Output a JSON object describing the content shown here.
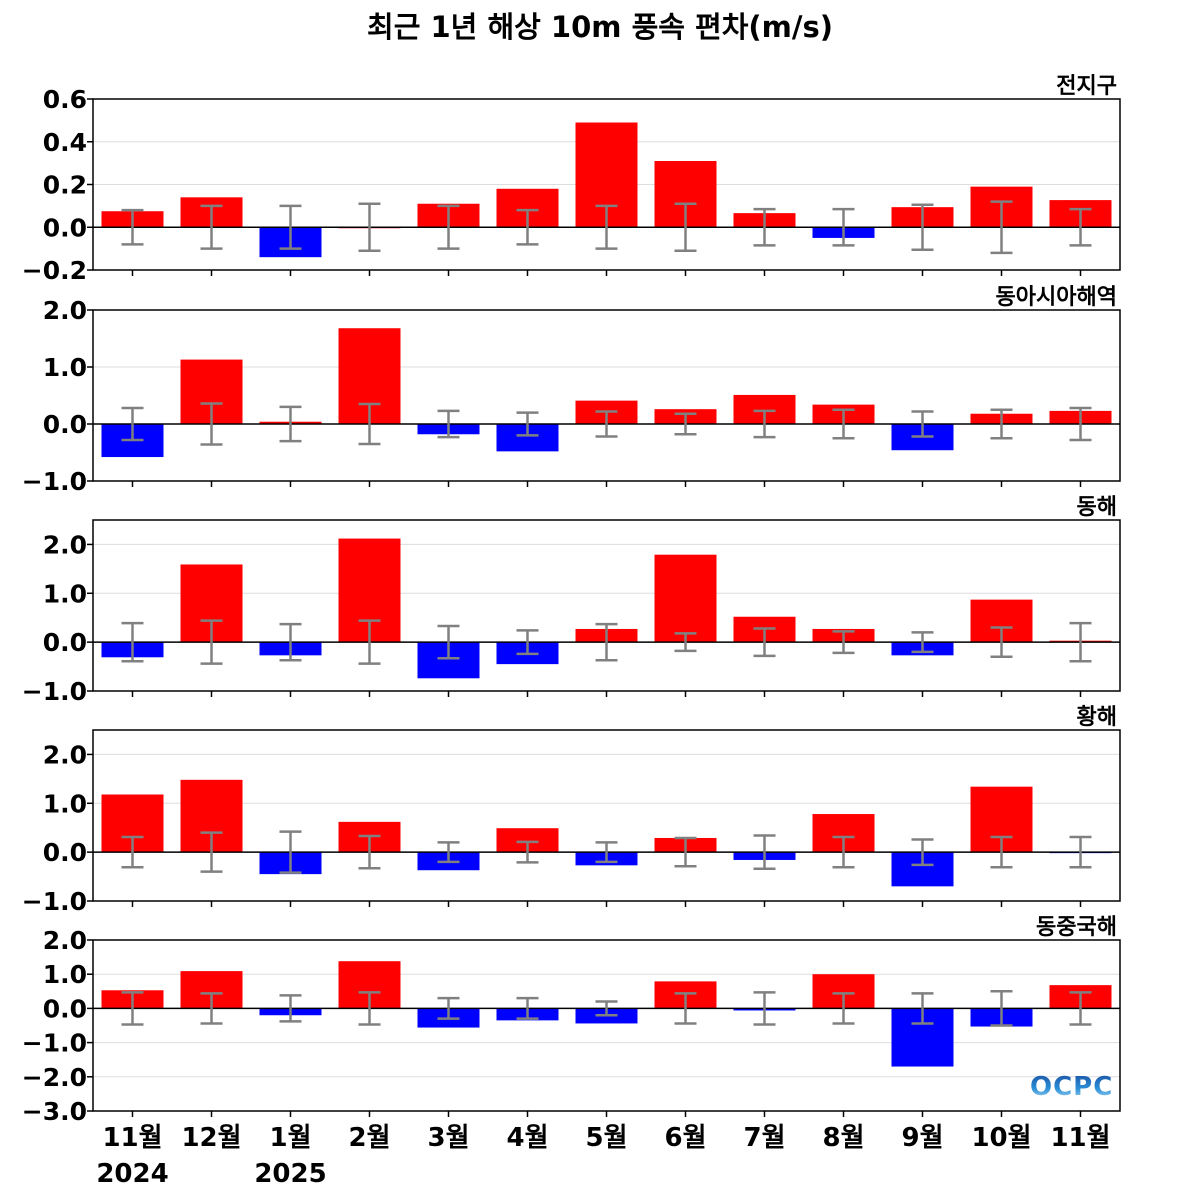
{
  "chart_data": [
    {
      "type": "bar",
      "panel_label": "전지구",
      "ylim": [
        -0.2,
        0.6
      ],
      "ticks": [
        0.6,
        0.4,
        0.2,
        0.0,
        -0.2
      ],
      "tick_labels": [
        "0.6",
        "0.4",
        "0.2",
        "0.0",
        "−0.2"
      ],
      "values": [
        0.075,
        0.14,
        -0.14,
        0.0,
        0.11,
        0.18,
        0.49,
        0.31,
        0.066,
        -0.05,
        0.094,
        0.19,
        0.127
      ],
      "error": [
        0.08,
        0.1,
        0.1,
        0.11,
        0.1,
        0.08,
        0.1,
        0.11,
        0.085,
        0.085,
        0.105,
        0.12,
        0.085
      ]
    },
    {
      "type": "bar",
      "panel_label": "동아시아해역",
      "ylim": [
        -1.0,
        2.0
      ],
      "ticks": [
        2.0,
        1.0,
        0.0,
        -1.0
      ],
      "tick_labels": [
        "2.0",
        "1.0",
        "0.0",
        "−1.0"
      ],
      "values": [
        -0.58,
        1.13,
        0.04,
        1.68,
        -0.18,
        -0.48,
        0.41,
        0.26,
        0.51,
        0.34,
        -0.46,
        0.18,
        0.23
      ],
      "error": [
        0.28,
        0.36,
        0.3,
        0.35,
        0.23,
        0.2,
        0.22,
        0.18,
        0.23,
        0.25,
        0.22,
        0.25,
        0.28
      ]
    },
    {
      "type": "bar",
      "panel_label": "동해",
      "ylim": [
        -1.0,
        2.5
      ],
      "ticks": [
        2.0,
        1.0,
        0.0,
        -1.0
      ],
      "tick_labels": [
        "2.0",
        "1.0",
        "0.0",
        "−1.0"
      ],
      "values": [
        -0.31,
        1.59,
        -0.27,
        2.12,
        -0.74,
        -0.45,
        0.27,
        1.79,
        0.52,
        0.27,
        -0.27,
        0.87,
        0.03
      ],
      "error": [
        0.39,
        0.44,
        0.37,
        0.44,
        0.33,
        0.24,
        0.37,
        0.18,
        0.28,
        0.22,
        0.2,
        0.3,
        0.39
      ]
    },
    {
      "type": "bar",
      "panel_label": "황해",
      "ylim": [
        -1.0,
        2.5
      ],
      "ticks": [
        2.0,
        1.0,
        0.0,
        -1.0
      ],
      "tick_labels": [
        "2.0",
        "1.0",
        "0.0",
        "−1.0"
      ],
      "values": [
        1.18,
        1.48,
        -0.45,
        0.62,
        -0.37,
        0.49,
        -0.27,
        0.29,
        -0.16,
        0.78,
        -0.7,
        1.34,
        -0.02
      ],
      "error": [
        0.31,
        0.4,
        0.42,
        0.33,
        0.2,
        0.21,
        0.2,
        0.29,
        0.34,
        0.31,
        0.26,
        0.31,
        0.31
      ]
    },
    {
      "type": "bar",
      "panel_label": "동중국해",
      "ylim": [
        -3.0,
        2.0
      ],
      "ticks": [
        2.0,
        1.0,
        0.0,
        -1.0,
        -2.0,
        -3.0
      ],
      "tick_labels": [
        "2.0",
        "1.0",
        "0.0",
        "−1.0",
        "−2.0",
        "−3.0"
      ],
      "values": [
        0.53,
        1.09,
        -0.2,
        1.38,
        -0.56,
        -0.35,
        -0.44,
        0.79,
        -0.06,
        1.0,
        -1.7,
        -0.53,
        0.68
      ],
      "error": [
        0.47,
        0.44,
        0.38,
        0.47,
        0.3,
        0.3,
        0.2,
        0.44,
        0.47,
        0.44,
        0.44,
        0.5,
        0.47
      ]
    }
  ],
  "title": "최근 1년 해상 10m 풍속 편차(m/s)",
  "categories": [
    "11월",
    "12월",
    "1월",
    "2월",
    "3월",
    "4월",
    "5월",
    "6월",
    "7월",
    "8월",
    "9월",
    "10월",
    "11월"
  ],
  "year_labels": [
    {
      "index": 0,
      "text": "2024"
    },
    {
      "index": 2,
      "text": "2025"
    }
  ],
  "colors": {
    "positive": "#ff0000",
    "negative": "#0000ff",
    "error": "#808080",
    "grid": "#dddddd"
  },
  "logo_text": "OCPC"
}
